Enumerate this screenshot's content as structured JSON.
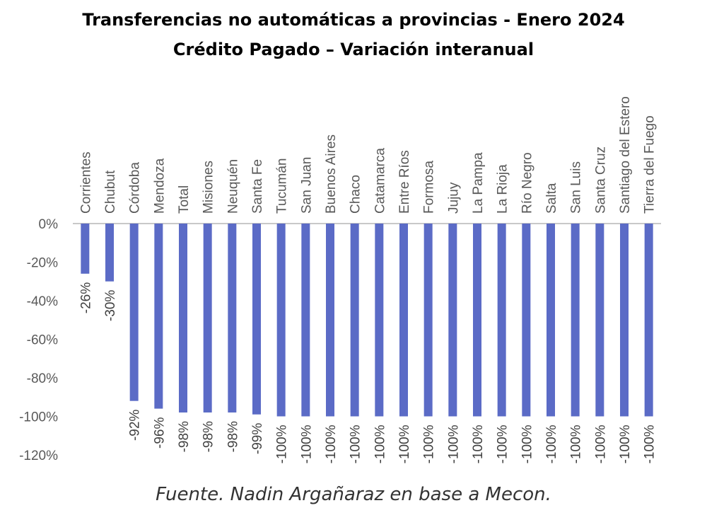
{
  "title": "Transferencias no automáticas a provincias - Enero 2024",
  "subtitle": "Crédito Pagado – Variación interanual",
  "source": "Fuente. Nadin Argañaraz en base a Mecon.",
  "chart_data": {
    "type": "bar",
    "categories": [
      "Corrientes",
      "Chubut",
      "Córdoba",
      "Mendoza",
      "Total",
      "Misiones",
      "Neuquén",
      "Santa Fe",
      "Tucumán",
      "San Juan",
      "Buenos Aires",
      "Chaco",
      "Catamarca",
      "Entre Ríos",
      "Formosa",
      "Jujuy",
      "La Pampa",
      "La Rioja",
      "Río Negro",
      "Salta",
      "San Luis",
      "Santa Cruz",
      "Santiago del Estero",
      "Tierra del Fuego"
    ],
    "values": [
      -26,
      -30,
      -92,
      -96,
      -98,
      -98,
      -98,
      -99,
      -100,
      -100,
      -100,
      -100,
      -100,
      -100,
      -100,
      -100,
      -100,
      -100,
      -100,
      -100,
      -100,
      -100,
      -100,
      -100
    ],
    "data_labels": [
      "-26%",
      "-30%",
      "-92%",
      "-96%",
      "-98%",
      "-98%",
      "-98%",
      "-99%",
      "-100%",
      "-100%",
      "-100%",
      "-100%",
      "-100%",
      "-100%",
      "-100%",
      "-100%",
      "-100%",
      "-100%",
      "-100%",
      "-100%",
      "-100%",
      "-100%",
      "-100%",
      "-100%"
    ],
    "ylim": [
      -120,
      0
    ],
    "yticks": [
      "0%",
      "-20%",
      "-40%",
      "-60%",
      "-80%",
      "-100%",
      "-120%"
    ],
    "ytick_values": [
      0,
      -20,
      -40,
      -60,
      -80,
      -100,
      -120
    ],
    "bar_color": "#5b6bc6",
    "zero_line_color": "#c8c8c8",
    "grid": false,
    "legend": false
  }
}
